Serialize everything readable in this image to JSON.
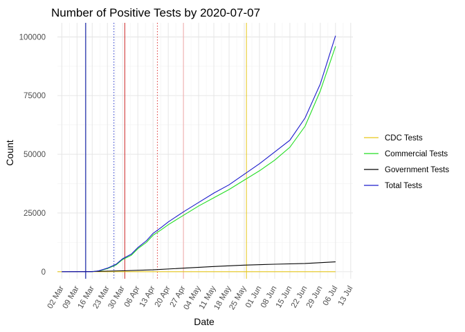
{
  "chart_data": {
    "type": "line",
    "title": "Number of Positive Tests by  2020-07-07",
    "xlabel": "Date",
    "ylabel": "Count",
    "x_ticks": [
      "02 Mar",
      "09 Mar",
      "16 Mar",
      "23 Mar",
      "30 Mar",
      "06 Apr",
      "13 Apr",
      "20 Apr",
      "27 Apr",
      "04 May",
      "11 May",
      "18 May",
      "25 May",
      "01 Jun",
      "08 Jun",
      "15 Jun",
      "22 Jun",
      "29 Jun",
      "06 Jul",
      "13 Jul"
    ],
    "y_ticks": [
      0,
      25000,
      50000,
      75000,
      100000
    ],
    "y_tick_labels": [
      "0",
      "25000",
      "50000",
      "75000",
      "100000"
    ],
    "xlim": [
      "2020-02-29",
      "2020-07-14"
    ],
    "ylim": [
      -3000,
      106000
    ],
    "grid": true,
    "legend_position": "right",
    "colors": {
      "CDC Tests": "#e6c619",
      "Commercial Tests": "#22dd22",
      "Government Tests": "#000000",
      "Total Tests": "#1a1acc"
    },
    "series": [
      {
        "name": "CDC Tests",
        "points": [
          [
            "2020-02-29",
            0
          ],
          [
            "2020-07-06",
            0
          ]
        ]
      },
      {
        "name": "Commercial Tests",
        "points": [
          [
            "2020-03-15",
            0
          ],
          [
            "2020-03-19",
            300
          ],
          [
            "2020-03-23",
            1300
          ],
          [
            "2020-03-27",
            2900
          ],
          [
            "2020-03-30",
            5200
          ],
          [
            "2020-04-03",
            7000
          ],
          [
            "2020-04-06",
            9800
          ],
          [
            "2020-04-10",
            12500
          ],
          [
            "2020-04-13",
            15500
          ],
          [
            "2020-04-17",
            18000
          ],
          [
            "2020-04-20",
            20000
          ],
          [
            "2020-04-27",
            24000
          ],
          [
            "2020-05-04",
            28000
          ],
          [
            "2020-05-11",
            31500
          ],
          [
            "2020-05-18",
            35000
          ],
          [
            "2020-05-25",
            39000
          ],
          [
            "2020-06-01",
            43000
          ],
          [
            "2020-06-08",
            47500
          ],
          [
            "2020-06-15",
            53000
          ],
          [
            "2020-06-22",
            62000
          ],
          [
            "2020-06-29",
            77000
          ],
          [
            "2020-07-06",
            96000
          ]
        ]
      },
      {
        "name": "Government Tests",
        "points": [
          [
            "2020-03-02",
            0
          ],
          [
            "2020-03-16",
            100
          ],
          [
            "2020-03-30",
            400
          ],
          [
            "2020-04-13",
            800
          ],
          [
            "2020-04-27",
            1500
          ],
          [
            "2020-05-11",
            2200
          ],
          [
            "2020-05-25",
            2800
          ],
          [
            "2020-06-08",
            3200
          ],
          [
            "2020-06-22",
            3500
          ],
          [
            "2020-07-06",
            4200
          ]
        ]
      },
      {
        "name": "Total Tests",
        "points": [
          [
            "2020-03-02",
            0
          ],
          [
            "2020-03-16",
            0
          ],
          [
            "2020-03-19",
            400
          ],
          [
            "2020-03-23",
            1500
          ],
          [
            "2020-03-27",
            3200
          ],
          [
            "2020-03-30",
            5500
          ],
          [
            "2020-04-03",
            7500
          ],
          [
            "2020-04-06",
            10300
          ],
          [
            "2020-04-10",
            13200
          ],
          [
            "2020-04-13",
            16300
          ],
          [
            "2020-04-17",
            19000
          ],
          [
            "2020-04-20",
            21200
          ],
          [
            "2020-04-27",
            25500
          ],
          [
            "2020-05-04",
            29500
          ],
          [
            "2020-05-11",
            33500
          ],
          [
            "2020-05-18",
            37000
          ],
          [
            "2020-05-25",
            41500
          ],
          [
            "2020-06-01",
            46000
          ],
          [
            "2020-06-08",
            51000
          ],
          [
            "2020-06-15",
            56000
          ],
          [
            "2020-06-22",
            65500
          ],
          [
            "2020-06-29",
            80000
          ],
          [
            "2020-07-06",
            100500
          ]
        ]
      }
    ],
    "vertical_lines": [
      {
        "date": "2020-03-13",
        "color": "#000000",
        "style": "solid"
      },
      {
        "date": "2020-03-13",
        "color": "#2233cc",
        "style": "solid"
      },
      {
        "date": "2020-03-26",
        "color": "#2233cc",
        "style": "dotted"
      },
      {
        "date": "2020-03-31",
        "color": "#cc2222",
        "style": "solid"
      },
      {
        "date": "2020-04-15",
        "color": "#dd3333",
        "style": "dotted"
      },
      {
        "date": "2020-04-27",
        "color": "#f0a8a8",
        "style": "solid"
      },
      {
        "date": "2020-05-26",
        "color": "#e6c619",
        "style": "solid"
      }
    ]
  }
}
